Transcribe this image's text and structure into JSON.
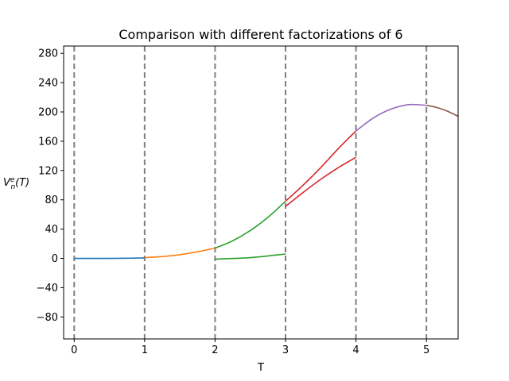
{
  "chart_data": {
    "type": "line",
    "title": "Comparison with different factorizations of 6",
    "xlabel": "T",
    "ylabel_main": "V",
    "ylabel_sub": "n",
    "ylabel_sup": "e",
    "ylabel_arg": "(T)",
    "xlim": [
      -0.15,
      5.45
    ],
    "ylim": [
      -110,
      290
    ],
    "xticks": [
      0,
      1,
      2,
      3,
      4,
      5
    ],
    "yticks": [
      -80,
      -40,
      0,
      40,
      80,
      120,
      160,
      200,
      240,
      280
    ],
    "vlines": [
      0,
      1,
      2,
      3,
      4,
      5
    ],
    "grid": false,
    "series": [
      {
        "color": "#1f77b4",
        "x": [
          0,
          0.25,
          0.5,
          0.75,
          1.0
        ],
        "y": [
          0,
          0,
          0,
          0.2,
          0.6
        ]
      },
      {
        "color": "#ff7f0e",
        "x": [
          1.0,
          1.25,
          1.5,
          1.75,
          2.0
        ],
        "y": [
          1,
          2.5,
          5,
          9,
          14
        ]
      },
      {
        "color": "#2ca02c",
        "x": [
          2.0,
          2.25,
          2.5,
          2.75,
          3.0
        ],
        "y": [
          14,
          24,
          38,
          56,
          78
        ]
      },
      {
        "color": "#2ca02c",
        "x": [
          2.0,
          2.5,
          3.0
        ],
        "y": [
          -1,
          1,
          6
        ]
      },
      {
        "color": "#d62728",
        "x": [
          3.0,
          3.25,
          3.5,
          3.75,
          4.0
        ],
        "y": [
          78,
          100,
          124,
          150,
          174
        ]
      },
      {
        "color": "#d62728",
        "x": [
          3.0,
          3.25,
          3.5,
          3.75,
          4.0
        ],
        "y": [
          71,
          90,
          108,
          124,
          138
        ]
      },
      {
        "color": "#9467bd",
        "x": [
          4.0,
          4.25,
          4.5,
          4.75,
          5.0
        ],
        "y": [
          174,
          192,
          204,
          210,
          209
        ]
      },
      {
        "color": "#8c564b",
        "x": [
          5.0,
          5.15,
          5.3,
          5.45
        ],
        "y": [
          209,
          206,
          201,
          194
        ]
      }
    ]
  }
}
